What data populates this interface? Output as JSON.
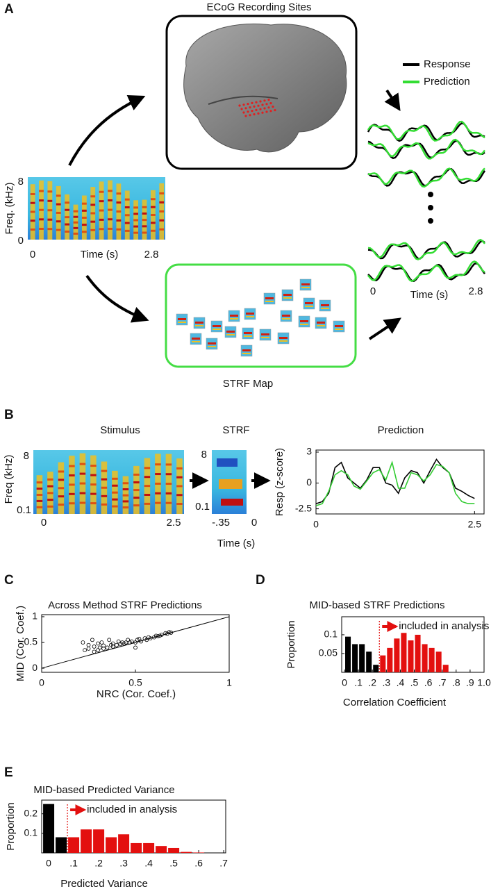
{
  "panel_a": {
    "label": "A",
    "title": "ECoG Recording Sites",
    "legend": [
      {
        "name": "Response",
        "color": "#000000"
      },
      {
        "name": "Prediction",
        "color": "#33dd33"
      }
    ],
    "spectrogram": {
      "y_label": "Freq. (kHz)",
      "y_max": "8",
      "y_min": "0",
      "x_label": "Time (s)",
      "x_min": "0",
      "x_max": "2.8"
    },
    "traces": {
      "x_min": "0",
      "x_max": "2.8",
      "x_label": "Time (s)"
    },
    "strf_map": "STRF Map"
  },
  "panel_b": {
    "label": "B",
    "stimulus": {
      "title": "Stimulus",
      "y_label": "Freq (kHz)",
      "y_max": "8",
      "y_min": "0.1",
      "x_min": "0",
      "x_max": "2.5"
    },
    "strf": {
      "title": "STRF",
      "y_max": "8",
      "y_min": "0.1",
      "x_min": "-.35",
      "x_max": "0",
      "x_label": "Time (s)"
    }
  },
  "chart_data": [
    {
      "type": "line",
      "title": "Prediction",
      "y_label": "Resp (z-score)",
      "x": [
        0,
        0.1,
        0.2,
        0.3,
        0.4,
        0.5,
        0.6,
        0.7,
        0.8,
        0.9,
        1,
        1.1,
        1.2,
        1.3,
        1.4,
        1.5,
        1.6,
        1.7,
        1.8,
        1.9,
        2,
        2.1,
        2.2,
        2.3,
        2.4,
        2.5
      ],
      "series": [
        {
          "color": "#000000",
          "values": [
            -2.0,
            -1.8,
            -1.0,
            1.5,
            2.0,
            0.5,
            0.0,
            -0.5,
            0.3,
            1.5,
            1.5,
            0.0,
            -0.2,
            -1.0,
            0.5,
            1.2,
            1.0,
            0.0,
            1.2,
            2.3,
            1.5,
            1.0,
            -0.5,
            -0.8,
            -1.2,
            -1.5
          ]
        },
        {
          "color": "#33cc33",
          "values": [
            -2.2,
            -2.0,
            -0.8,
            0.8,
            1.2,
            0.8,
            -0.3,
            -0.6,
            0.2,
            1.0,
            1.3,
            0.3,
            2.0,
            -0.5,
            -0.5,
            1.0,
            0.8,
            0.2,
            0.8,
            1.8,
            1.6,
            1.0,
            -1.0,
            -1.8,
            -2.0,
            -2.0
          ]
        }
      ],
      "xlim": [
        0,
        2.65
      ],
      "ylim": [
        -3,
        3.2
      ],
      "xticks": [
        0,
        2.5
      ],
      "yticks": [
        3,
        0,
        -2.5
      ]
    },
    {
      "type": "scatter",
      "label": "C",
      "title": "Across Method STRF Predictions",
      "x_label": "NRC (Cor. Coef.)",
      "y_label": "MID (Cor. Coef.)",
      "x": [
        0.22,
        0.23,
        0.25,
        0.25,
        0.27,
        0.28,
        0.28,
        0.3,
        0.3,
        0.31,
        0.32,
        0.33,
        0.33,
        0.35,
        0.36,
        0.37,
        0.38,
        0.38,
        0.4,
        0.41,
        0.42,
        0.43,
        0.44,
        0.45,
        0.46,
        0.47,
        0.48,
        0.5,
        0.5,
        0.51,
        0.52,
        0.53,
        0.55,
        0.56,
        0.57,
        0.58,
        0.6,
        0.61,
        0.62,
        0.63,
        0.64,
        0.66,
        0.67,
        0.68,
        0.69
      ],
      "values": [
        0.5,
        0.35,
        0.45,
        0.38,
        0.55,
        0.32,
        0.42,
        0.35,
        0.48,
        0.4,
        0.5,
        0.38,
        0.44,
        0.4,
        0.55,
        0.45,
        0.42,
        0.48,
        0.45,
        0.52,
        0.47,
        0.5,
        0.48,
        0.5,
        0.55,
        0.5,
        0.52,
        0.5,
        0.4,
        0.55,
        0.57,
        0.52,
        0.58,
        0.55,
        0.6,
        0.58,
        0.6,
        0.63,
        0.62,
        0.63,
        0.65,
        0.68,
        0.67,
        0.7,
        0.69
      ],
      "color": "#000000",
      "xlim": [
        0,
        1
      ],
      "ylim": [
        -0.08,
        1.04
      ],
      "xticks": [
        0,
        0.5,
        1
      ],
      "yticks": [
        0,
        0.5,
        1
      ],
      "identity_line": true
    },
    {
      "type": "histogram",
      "label": "D",
      "title": "MID-based STRF Predictions",
      "x_label": "Correlation Coefficient",
      "y_label": "Proportion",
      "bins": [
        0,
        0.05,
        0.1,
        0.15,
        0.2,
        0.25,
        0.3,
        0.35,
        0.4,
        0.45,
        0.5,
        0.55,
        0.6,
        0.65,
        0.7,
        0.75,
        0.8,
        0.85,
        0.9,
        0.95,
        1.0
      ],
      "values": [
        0.095,
        0.075,
        0.075,
        0.055,
        0.02,
        0.045,
        0.065,
        0.09,
        0.105,
        0.085,
        0.1,
        0.075,
        0.065,
        0.055,
        0.02,
        0,
        0,
        0,
        0,
        0
      ],
      "color": "#000000",
      "highlight_color": "#e3100f",
      "threshold": 0.25,
      "annotation": "included in analysis",
      "xlim": [
        -0.02,
        1.0
      ],
      "ylim": [
        0,
        0.148
      ],
      "xticks": [
        0,
        {
          "value": 0.1,
          "label": ".1"
        },
        {
          "value": 0.2,
          "label": ".2"
        },
        {
          "value": 0.3,
          "label": ".3"
        },
        {
          "value": 0.4,
          "label": ".4"
        },
        {
          "value": 0.5,
          "label": ".5"
        },
        {
          "value": 0.6,
          "label": ".6"
        },
        {
          "value": 0.7,
          "label": ".7"
        },
        {
          "value": 0.8,
          "label": ".8"
        },
        {
          "value": 0.9,
          "label": ".9"
        },
        {
          "value": 1,
          "label": "1.0"
        }
      ],
      "yticks": [
        0.05,
        0.1
      ]
    },
    {
      "type": "histogram",
      "label": "E",
      "title": "MID-based Predicted Variance",
      "x_label": "Predicted Variance",
      "y_label": "Proportion",
      "bins": [
        -0.025,
        0.025,
        0.075,
        0.125,
        0.175,
        0.225,
        0.275,
        0.325,
        0.375,
        0.425,
        0.475,
        0.525,
        0.575,
        0.625
      ],
      "values": [
        0.25,
        0.08,
        0.08,
        0.12,
        0.12,
        0.08,
        0.095,
        0.05,
        0.05,
        0.035,
        0.025,
        0.005,
        0.002
      ],
      "color": "#000000",
      "highlight_color": "#e3100f",
      "threshold": 0.075,
      "annotation": "included in analysis",
      "xlim": [
        -0.028,
        0.708
      ],
      "ylim": [
        0,
        0.27
      ],
      "xticks": [
        0,
        {
          "value": 0.1,
          "label": ".1"
        },
        {
          "value": 0.2,
          "label": ".2"
        },
        {
          "value": 0.3,
          "label": ".3"
        },
        {
          "value": 0.4,
          "label": ".4"
        },
        {
          "value": 0.5,
          "label": ".5"
        },
        {
          "value": 0.6,
          "label": ".6"
        },
        {
          "value": 0.7,
          "label": ".7"
        }
      ],
      "yticks": [
        0.1,
        0.2
      ]
    }
  ]
}
